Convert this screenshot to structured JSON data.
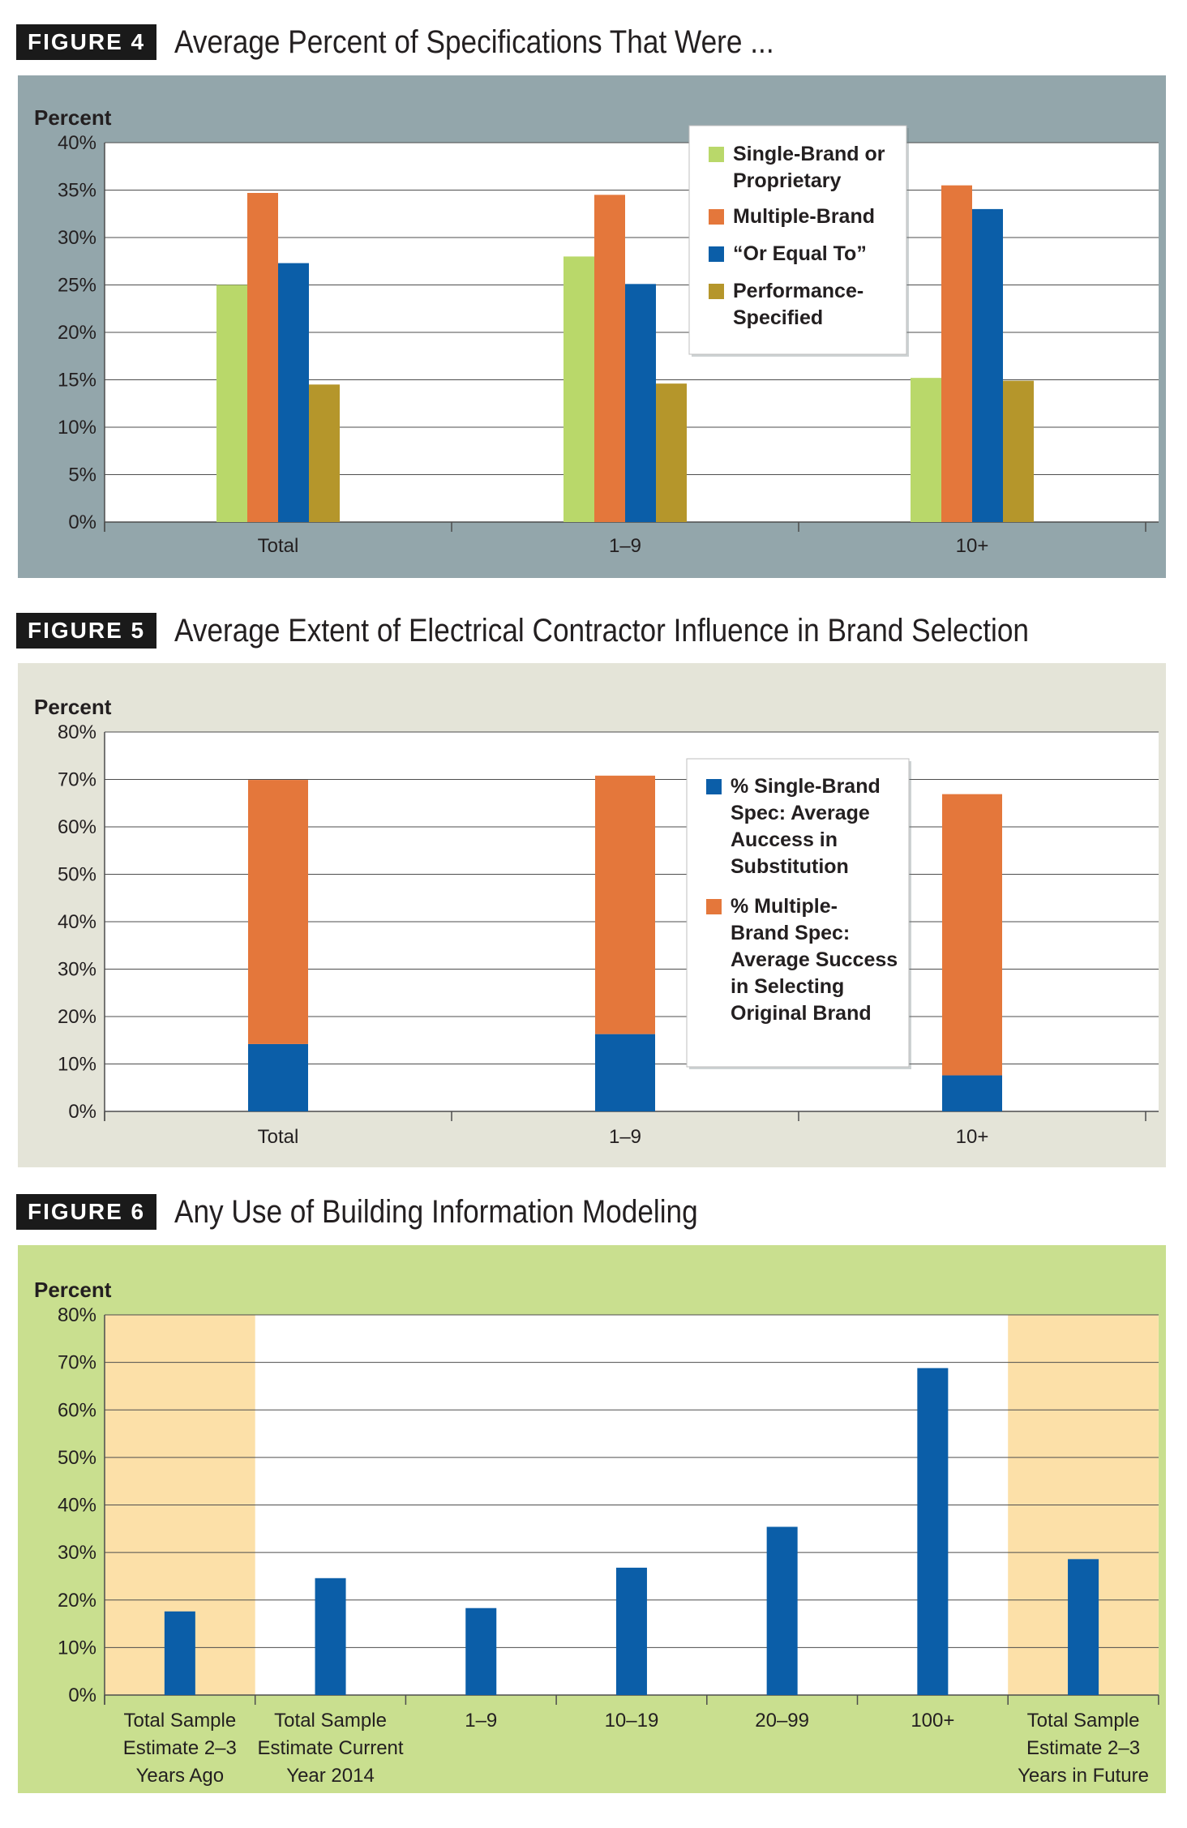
{
  "figures": [
    {
      "tag": "FIGURE 4",
      "title": "Average Percent of Specifications That Were ..."
    },
    {
      "tag": "FIGURE 5",
      "title": "Average Extent of Electrical Contractor Influence in Brand Selection"
    },
    {
      "tag": "FIGURE 6",
      "title": "Any Use of Building Information Modeling"
    }
  ],
  "chart_data": [
    {
      "type": "bar",
      "title": "Average Percent of Specifications That Were ...",
      "ylabel": "Percent",
      "ylim": [
        0,
        40
      ],
      "yticks": [
        "0%",
        "5%",
        "10%",
        "15%",
        "20%",
        "25%",
        "30%",
        "35%",
        "40%"
      ],
      "categories": [
        "Total",
        "1–9",
        "10+"
      ],
      "series": [
        {
          "name": "Single-Brand or Proprietary",
          "color": "#b9d86a",
          "values": [
            25,
            28,
            15.2
          ]
        },
        {
          "name": "Multiple-Brand",
          "color": "#e4773b",
          "values": [
            34.7,
            34.5,
            35.5
          ]
        },
        {
          "name": "“Or Equal To”",
          "color": "#0b5ea8",
          "values": [
            27.3,
            25.1,
            33
          ]
        },
        {
          "name": "Performance-Specified",
          "color": "#b5962b",
          "values": [
            14.5,
            14.6,
            14.9
          ]
        }
      ],
      "legend": "top-right",
      "grid": true,
      "background": "#93a6ab"
    },
    {
      "type": "bar",
      "stacked": true,
      "title": "Average Extent of Electrical Contractor Influence in Brand Selection",
      "ylabel": "Percent",
      "ylim": [
        0,
        80
      ],
      "yticks": [
        "0%",
        "10%",
        "20%",
        "30%",
        "40%",
        "50%",
        "60%",
        "70%",
        "80%"
      ],
      "categories": [
        "Total",
        "1–9",
        "10+"
      ],
      "series": [
        {
          "name": "% Single-Brand Spec: Average Auccess in Substitution",
          "color": "#0b5ea8",
          "values": [
            14.2,
            16.3,
            7.6
          ]
        },
        {
          "name": "% Multiple-Brand Spec: Average Success in Selecting Original Brand",
          "color": "#e4773b",
          "values": [
            55.7,
            54.5,
            59.3
          ]
        }
      ],
      "legend": "right",
      "grid": true,
      "background": "#e4e4d8"
    },
    {
      "type": "bar",
      "title": "Any Use of Building Information Modeling",
      "ylabel": "Percent",
      "ylim": [
        0,
        80
      ],
      "yticks": [
        "0%",
        "10%",
        "20%",
        "30%",
        "40%",
        "50%",
        "60%",
        "70%",
        "80%"
      ],
      "categories": [
        "Total Sample Estimate 2–3 Years Ago",
        "Total Sample Estimate Current Year 2014",
        "1–9",
        "10–19",
        "20–99",
        "100+",
        "Total Sample Estimate 2–3 Years in Future"
      ],
      "category_lines": [
        [
          "Total Sample",
          "Estimate 2–3",
          "Years Ago"
        ],
        [
          "Total Sample",
          "Estimate Current",
          "Year 2014"
        ],
        [
          "1–9"
        ],
        [
          "10–19"
        ],
        [
          "20–99"
        ],
        [
          "100+"
        ],
        [
          "Total Sample",
          "Estimate 2–3",
          "Years in Future"
        ]
      ],
      "series": [
        {
          "color": "#0b5ea8",
          "values": [
            17.6,
            24.6,
            18.3,
            26.8,
            35.4,
            68.8,
            28.6
          ]
        }
      ],
      "highlight_categories": [
        0,
        6
      ],
      "highlight_color": "#fce0a8",
      "grid": true,
      "background": "#c9df8f"
    }
  ]
}
